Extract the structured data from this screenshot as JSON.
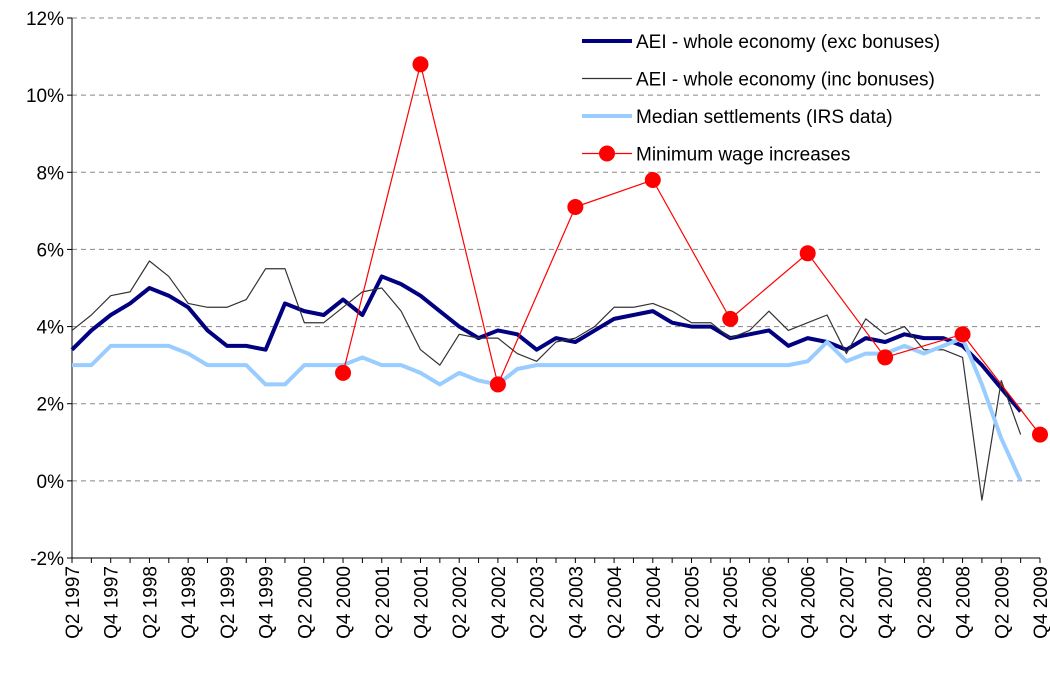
{
  "chart_data": {
    "type": "line",
    "categories": [
      "Q2 1997",
      null,
      "Q4 1997",
      null,
      "Q2 1998",
      null,
      "Q4 1998",
      null,
      "Q2 1999",
      null,
      "Q4 1999",
      null,
      "Q2 2000",
      null,
      "Q4 2000",
      null,
      "Q2 2001",
      null,
      "Q4 2001",
      null,
      "Q2 2002",
      null,
      "Q4 2002",
      null,
      "Q2 2003",
      null,
      "Q4 2003",
      null,
      "Q2 2004",
      null,
      "Q4 2004",
      null,
      "Q2 2005",
      null,
      "Q4 2005",
      null,
      "Q2 2006",
      null,
      "Q4 2006",
      null,
      "Q2 2007",
      null,
      "Q4 2007",
      null,
      "Q2 2008",
      null,
      "Q4 2008",
      null,
      "Q2 2009",
      null,
      "Q4 2009"
    ],
    "series": [
      {
        "name": "AEI - whole economy (exc bonuses)",
        "color": "#000080",
        "width": 4,
        "values": [
          3.4,
          3.9,
          4.3,
          4.6,
          5.0,
          4.8,
          4.5,
          3.9,
          3.5,
          3.5,
          3.4,
          4.6,
          4.4,
          4.3,
          4.7,
          4.3,
          5.3,
          5.1,
          4.8,
          4.4,
          4.0,
          3.7,
          3.9,
          3.8,
          3.4,
          3.7,
          3.6,
          3.9,
          4.2,
          4.3,
          4.4,
          4.1,
          4.0,
          4.0,
          3.7,
          3.8,
          3.9,
          3.5,
          3.7,
          3.6,
          3.4,
          3.7,
          3.6,
          3.8,
          3.7,
          3.7,
          3.5,
          3.0,
          2.4,
          1.8,
          null
        ]
      },
      {
        "name": "AEI - whole economy (inc bonuses)",
        "color": "#333333",
        "width": 1.2,
        "values": [
          3.9,
          4.3,
          4.8,
          4.9,
          5.7,
          5.3,
          4.6,
          4.5,
          4.5,
          4.7,
          5.5,
          5.5,
          4.1,
          4.1,
          4.5,
          4.9,
          5.0,
          4.4,
          3.4,
          3.0,
          3.8,
          3.7,
          3.7,
          3.3,
          3.1,
          3.6,
          3.7,
          4.0,
          4.5,
          4.5,
          4.6,
          4.4,
          4.1,
          4.1,
          3.7,
          3.9,
          4.4,
          3.9,
          4.1,
          4.3,
          3.3,
          4.2,
          3.8,
          4.0,
          3.4,
          3.4,
          3.2,
          -0.5,
          2.6,
          1.2,
          null
        ]
      },
      {
        "name": "Median settlements (IRS data)",
        "color": "#99ccff",
        "width": 4,
        "values": [
          3.0,
          3.0,
          3.5,
          3.5,
          3.5,
          3.5,
          3.3,
          3.0,
          3.0,
          3.0,
          2.5,
          2.5,
          3.0,
          3.0,
          3.0,
          3.2,
          3.0,
          3.0,
          2.8,
          2.5,
          2.8,
          2.6,
          2.5,
          2.9,
          3.0,
          3.0,
          3.0,
          3.0,
          3.0,
          3.0,
          3.0,
          3.0,
          3.0,
          3.0,
          3.0,
          3.0,
          3.0,
          3.0,
          3.1,
          3.6,
          3.1,
          3.3,
          3.3,
          3.5,
          3.3,
          3.5,
          3.7,
          2.5,
          1.1,
          0.0,
          null
        ]
      },
      {
        "name": "Minimum wage increases",
        "color": "#ff0000",
        "width": 1.2,
        "marker": true,
        "span_gaps": true,
        "values": [
          null,
          null,
          null,
          null,
          null,
          null,
          null,
          null,
          null,
          null,
          null,
          null,
          null,
          null,
          2.8,
          null,
          null,
          null,
          10.8,
          null,
          null,
          null,
          2.5,
          null,
          null,
          null,
          7.1,
          null,
          null,
          null,
          7.8,
          null,
          null,
          null,
          4.2,
          null,
          null,
          null,
          5.9,
          null,
          null,
          null,
          3.2,
          null,
          null,
          null,
          3.8,
          null,
          null,
          null,
          1.2
        ]
      }
    ],
    "ylim": [
      -2,
      12
    ],
    "yticks": [
      {
        "value": -2,
        "label": "-2%"
      },
      {
        "value": 0,
        "label": "0%"
      },
      {
        "value": 2,
        "label": "2%"
      },
      {
        "value": 4,
        "label": "4%"
      },
      {
        "value": 6,
        "label": "6%"
      },
      {
        "value": 8,
        "label": "8%"
      },
      {
        "value": 10,
        "label": "10%"
      },
      {
        "value": 12,
        "label": "12%"
      }
    ],
    "grid": true,
    "legend": "top-right"
  }
}
